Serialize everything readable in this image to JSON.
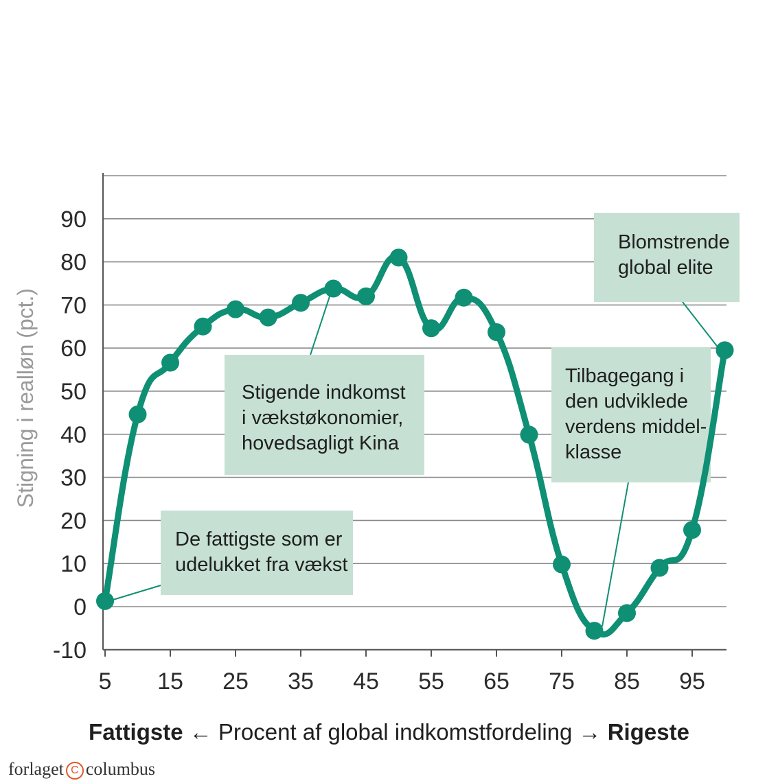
{
  "chart_data": {
    "type": "line",
    "ylabel": "Stigning i realløn (pct.)",
    "xlim": [
      5,
      100
    ],
    "ylim": [
      -10,
      100
    ],
    "x_ticks": [
      5,
      15,
      25,
      35,
      45,
      55,
      65,
      75,
      85,
      95
    ],
    "y_ticks": [
      -10,
      0,
      10,
      20,
      30,
      40,
      50,
      60,
      70,
      80,
      90
    ],
    "grid": true,
    "series_color": "#0f8f73",
    "annotation_color": "#c6e1d4",
    "x": [
      5,
      10,
      15,
      20,
      25,
      30,
      35,
      40,
      45,
      50,
      55,
      60,
      65,
      70,
      75,
      80,
      85,
      90,
      95,
      100
    ],
    "series": [
      {
        "values": [
          1.3,
          44.6,
          56.6,
          65.0,
          69.0,
          67.1,
          70.5,
          73.8,
          72.0,
          81.0,
          64.6,
          71.7,
          63.7,
          39.9,
          9.8,
          -5.6,
          -1.5,
          9.0,
          17.8,
          59.5
        ]
      }
    ],
    "annotations": [
      {
        "id": "elite",
        "lines": [
          "Blomstrende",
          "global elite"
        ]
      },
      {
        "id": "china",
        "lines": [
          "Stigende indkomst",
          "i vækstøkonomier,",
          "hovedsagligt Kina"
        ]
      },
      {
        "id": "decline",
        "lines": [
          "Tilbagegang i",
          "den udviklede",
          "verdens middel-",
          "klasse"
        ]
      },
      {
        "id": "poorest",
        "lines": [
          "De fattigste som er",
          "udelukket fra vækst"
        ]
      }
    ]
  },
  "footer": {
    "left_bold": "Fattigste",
    "left_arrow": "←",
    "middle": "Procent af global indkomstfordeling",
    "right_arrow": "→",
    "right_bold": "Rigeste"
  },
  "brand": {
    "left": "forlaget",
    "mark": "C",
    "right": "columbus"
  }
}
